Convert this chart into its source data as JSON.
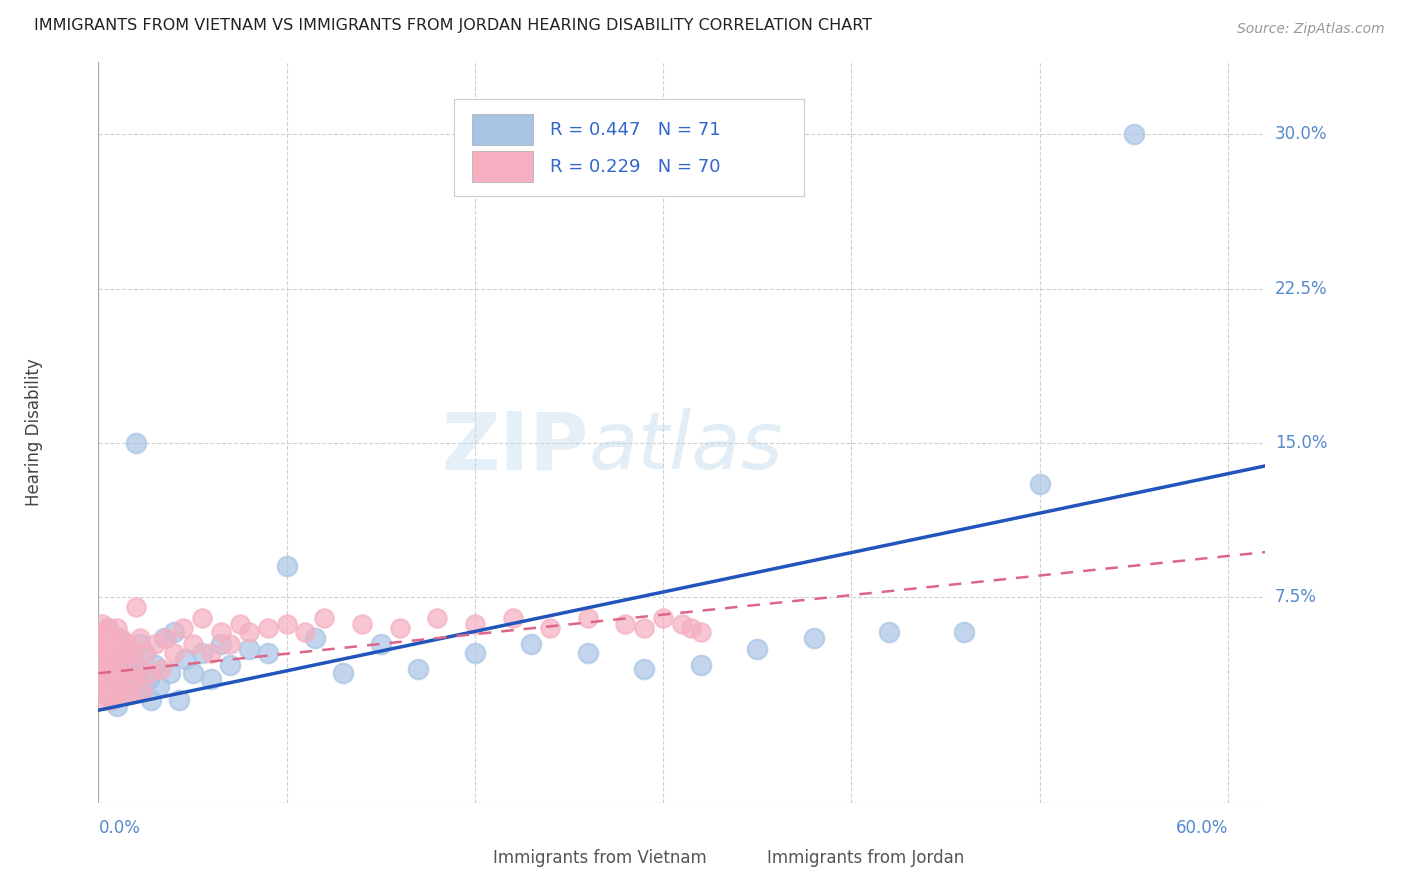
{
  "title": "IMMIGRANTS FROM VIETNAM VS IMMIGRANTS FROM JORDAN HEARING DISABILITY CORRELATION CHART",
  "source": "Source: ZipAtlas.com",
  "ylabel": "Hearing Disability",
  "yticks": [
    0.0,
    0.075,
    0.15,
    0.225,
    0.3
  ],
  "ytick_labels": [
    "",
    "7.5%",
    "15.0%",
    "22.5%",
    "30.0%"
  ],
  "xtick_labels": [
    "0.0%",
    "",
    "",
    "",
    "",
    "",
    "60.0%"
  ],
  "xlim": [
    0.0,
    0.62
  ],
  "ylim": [
    -0.025,
    0.335
  ],
  "legend_vietnam": "R = 0.447   N = 71",
  "legend_jordan": "R = 0.229   N = 70",
  "watermark_zip": "ZIP",
  "watermark_atlas": "atlas",
  "vietnam_color": "#a8c4e5",
  "jordan_color": "#f5afc0",
  "vietnam_line_color": "#2255bb",
  "jordan_line_color": "#dd6688",
  "background_color": "#ffffff",
  "grid_color": "#cccccc",
  "title_color": "#222222",
  "axis_label_color": "#5588cc",
  "legend_text_color": "#3366cc",
  "bottom_legend_color": "#555555",
  "vietnam_x": [
    0.002,
    0.003,
    0.003,
    0.004,
    0.004,
    0.005,
    0.005,
    0.005,
    0.006,
    0.006,
    0.006,
    0.007,
    0.007,
    0.007,
    0.008,
    0.008,
    0.008,
    0.009,
    0.009,
    0.009,
    0.01,
    0.01,
    0.01,
    0.011,
    0.011,
    0.012,
    0.012,
    0.013,
    0.014,
    0.015,
    0.016,
    0.017,
    0.018,
    0.019,
    0.02,
    0.021,
    0.022,
    0.023,
    0.025,
    0.027,
    0.028,
    0.03,
    0.032,
    0.035,
    0.038,
    0.04,
    0.043,
    0.046,
    0.05,
    0.055,
    0.06,
    0.065,
    0.07,
    0.08,
    0.09,
    0.1,
    0.115,
    0.13,
    0.15,
    0.17,
    0.2,
    0.23,
    0.26,
    0.29,
    0.32,
    0.35,
    0.38,
    0.42,
    0.46,
    0.5,
    0.55
  ],
  "vietnam_y": [
    0.042,
    0.05,
    0.035,
    0.055,
    0.028,
    0.048,
    0.038,
    0.06,
    0.032,
    0.05,
    0.04,
    0.055,
    0.035,
    0.025,
    0.048,
    0.038,
    0.028,
    0.052,
    0.04,
    0.03,
    0.048,
    0.035,
    0.022,
    0.055,
    0.038,
    0.045,
    0.03,
    0.04,
    0.035,
    0.05,
    0.038,
    0.028,
    0.045,
    0.032,
    0.15,
    0.038,
    0.052,
    0.03,
    0.048,
    0.035,
    0.025,
    0.042,
    0.032,
    0.055,
    0.038,
    0.058,
    0.025,
    0.045,
    0.038,
    0.048,
    0.035,
    0.052,
    0.042,
    0.05,
    0.048,
    0.09,
    0.055,
    0.038,
    0.052,
    0.04,
    0.048,
    0.052,
    0.048,
    0.04,
    0.042,
    0.05,
    0.055,
    0.058,
    0.058,
    0.13,
    0.3
  ],
  "jordan_x": [
    0.001,
    0.001,
    0.002,
    0.002,
    0.002,
    0.003,
    0.003,
    0.003,
    0.004,
    0.004,
    0.004,
    0.005,
    0.005,
    0.005,
    0.005,
    0.006,
    0.006,
    0.007,
    0.007,
    0.008,
    0.008,
    0.009,
    0.009,
    0.01,
    0.01,
    0.011,
    0.011,
    0.012,
    0.013,
    0.014,
    0.015,
    0.016,
    0.017,
    0.018,
    0.019,
    0.02,
    0.021,
    0.022,
    0.023,
    0.025,
    0.027,
    0.03,
    0.033,
    0.036,
    0.04,
    0.045,
    0.05,
    0.055,
    0.06,
    0.065,
    0.07,
    0.075,
    0.08,
    0.09,
    0.1,
    0.11,
    0.12,
    0.14,
    0.16,
    0.18,
    0.2,
    0.22,
    0.24,
    0.26,
    0.28,
    0.29,
    0.3,
    0.31,
    0.315,
    0.32
  ],
  "jordan_y": [
    0.038,
    0.055,
    0.03,
    0.05,
    0.062,
    0.025,
    0.045,
    0.058,
    0.035,
    0.05,
    0.04,
    0.06,
    0.03,
    0.048,
    0.038,
    0.055,
    0.025,
    0.045,
    0.035,
    0.052,
    0.028,
    0.05,
    0.04,
    0.06,
    0.03,
    0.048,
    0.038,
    0.055,
    0.028,
    0.045,
    0.035,
    0.052,
    0.028,
    0.048,
    0.035,
    0.07,
    0.04,
    0.055,
    0.03,
    0.048,
    0.038,
    0.052,
    0.04,
    0.055,
    0.048,
    0.06,
    0.052,
    0.065,
    0.048,
    0.058,
    0.052,
    0.062,
    0.058,
    0.06,
    0.062,
    0.058,
    0.065,
    0.062,
    0.06,
    0.065,
    0.062,
    0.065,
    0.06,
    0.065,
    0.062,
    0.06,
    0.065,
    0.062,
    0.06,
    0.058
  ]
}
